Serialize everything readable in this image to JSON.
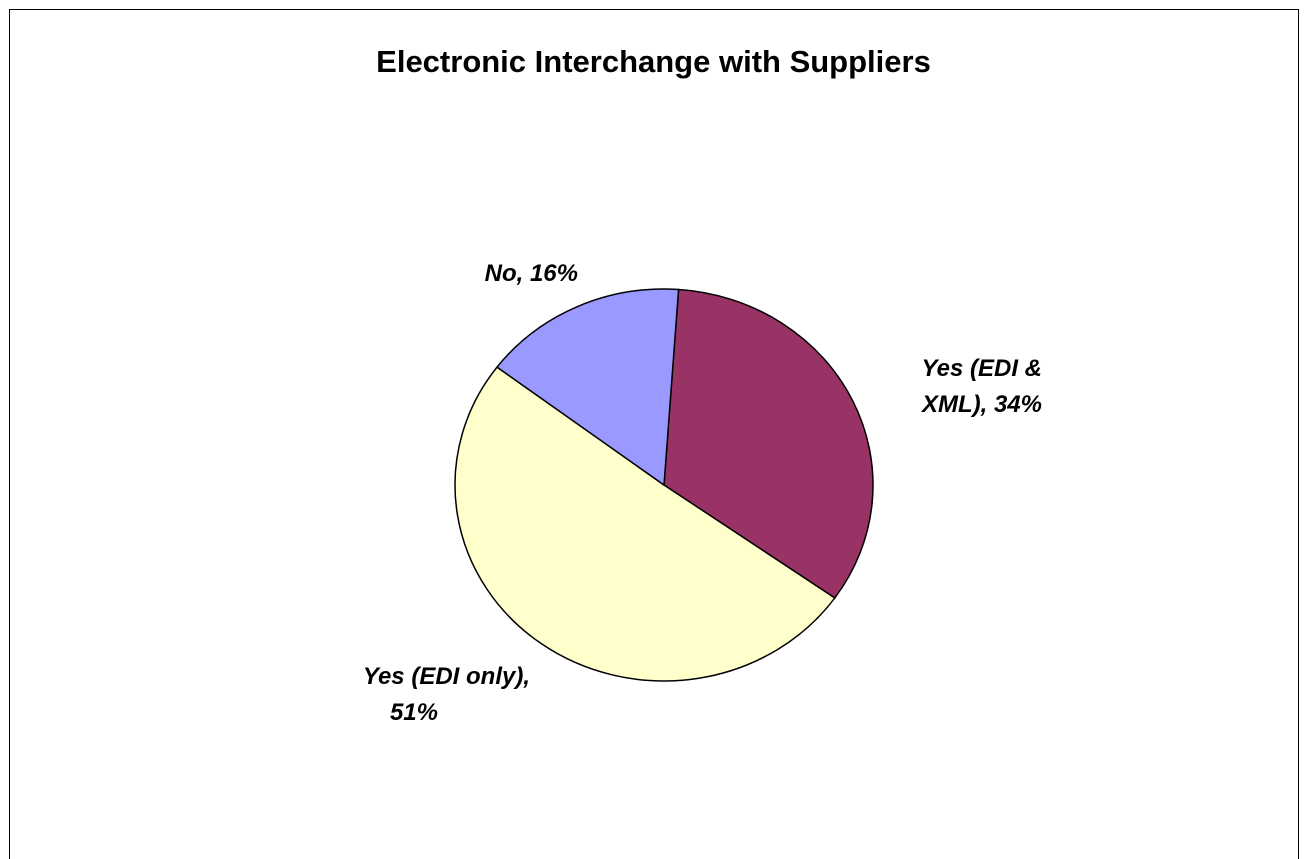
{
  "chart_data": {
    "type": "pie",
    "title": "Electronic Interchange with Suppliers",
    "slices": [
      {
        "label": "Yes (EDI & XML), 34%",
        "lines": [
          "Yes (EDI &",
          "XML), 34%"
        ],
        "value": 34,
        "color": "#993366"
      },
      {
        "label": "Yes (EDI only), 51%",
        "lines": [
          "Yes (EDI only),",
          "51%"
        ],
        "value": 51,
        "color": "#FFFFCC"
      },
      {
        "label": "No, 16%",
        "lines": [
          "No, 16%"
        ],
        "value": 16,
        "color": "#9999FF"
      }
    ],
    "start_angle_deg": 4,
    "direction": "clockwise",
    "legend": "none"
  }
}
